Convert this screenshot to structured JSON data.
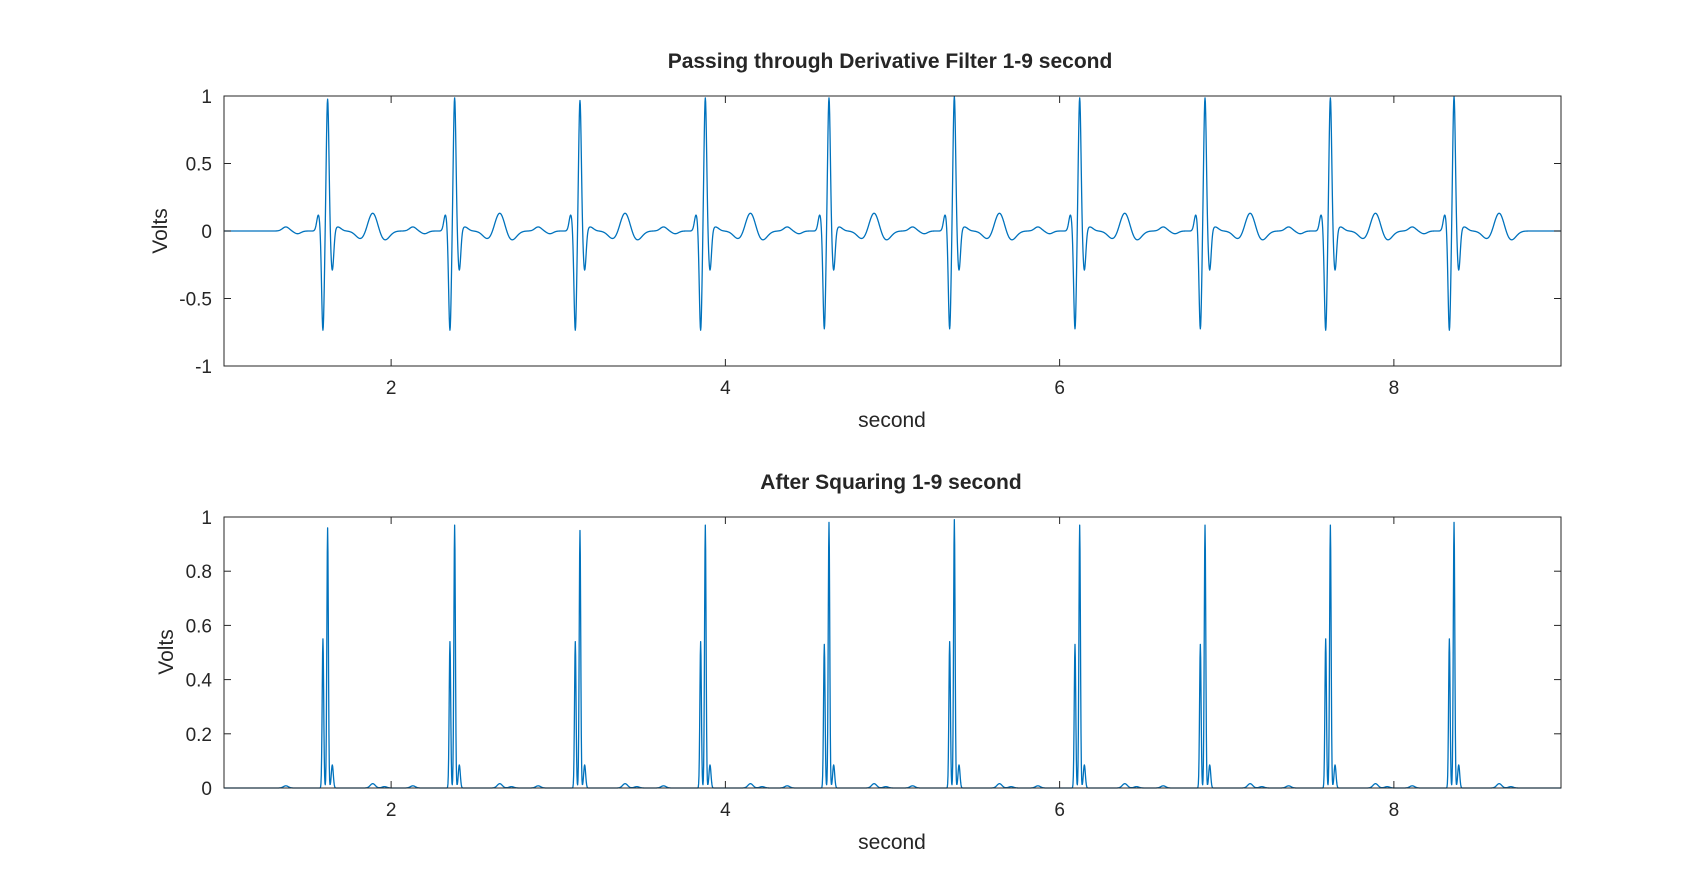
{
  "figure": {
    "line_color": "#0072BD",
    "axis_color": "#262626",
    "background": "#ffffff"
  },
  "chart_data": [
    {
      "type": "line",
      "title": "Passing through Derivative Filter 1-9 second",
      "xlabel": "second",
      "ylabel": "Volts",
      "xlim": [
        1,
        9
      ],
      "ylim": [
        -1,
        1
      ],
      "x_ticks": [
        2,
        4,
        6,
        8
      ],
      "x_tick_labels": [
        "2",
        "4",
        "6",
        "8"
      ],
      "y_ticks": [
        -1,
        -0.5,
        0,
        0.5,
        1
      ],
      "y_tick_labels": [
        "-1",
        "-0.5",
        "0",
        "0.5",
        "1"
      ],
      "grid": false,
      "beat_times": [
        1.62,
        2.38,
        3.13,
        3.88,
        4.62,
        5.37,
        6.12,
        6.87,
        7.62,
        8.36
      ],
      "peak_values": [
        0.98,
        0.99,
        0.97,
        0.99,
        0.99,
        1.0,
        0.99,
        0.99,
        0.99,
        1.0
      ],
      "trough_values": [
        -0.74,
        -0.74,
        -0.74,
        -0.74,
        -0.73,
        -0.73,
        -0.73,
        -0.73,
        -0.74,
        -0.74
      ]
    },
    {
      "type": "line",
      "title": "After Squaring 1-9 second",
      "xlabel": "second",
      "ylabel": "Volts",
      "xlim": [
        1,
        9
      ],
      "ylim": [
        0,
        1
      ],
      "x_ticks": [
        2,
        4,
        6,
        8
      ],
      "x_tick_labels": [
        "2",
        "4",
        "6",
        "8"
      ],
      "y_ticks": [
        0,
        0.2,
        0.4,
        0.6,
        0.8,
        1
      ],
      "y_tick_labels": [
        "0",
        "0.2",
        "0.4",
        "0.6",
        "0.8",
        "1"
      ],
      "grid": false,
      "beat_times": [
        1.62,
        2.38,
        3.13,
        3.88,
        4.62,
        5.37,
        6.12,
        6.87,
        7.62,
        8.36
      ],
      "peak_values": [
        0.96,
        0.97,
        0.95,
        0.97,
        0.98,
        0.99,
        0.97,
        0.97,
        0.97,
        0.98
      ],
      "secondary_peak_values": [
        0.55,
        0.54,
        0.54,
        0.54,
        0.53,
        0.54,
        0.53,
        0.53,
        0.55,
        0.55
      ]
    }
  ]
}
